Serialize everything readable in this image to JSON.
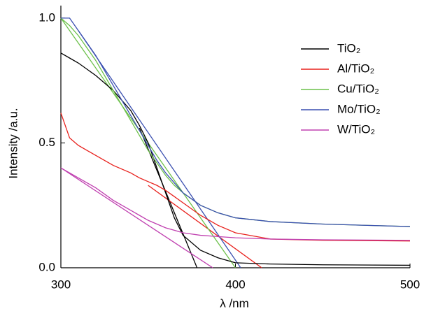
{
  "chart_data": {
    "type": "line",
    "x_label": "λ /nm",
    "y_label": "Intensity /a.u.",
    "x": [
      300,
      305,
      310,
      320,
      330,
      340,
      345,
      350,
      355,
      360,
      365,
      370,
      380,
      390,
      400,
      420,
      450,
      500
    ],
    "series": [
      {
        "name": "TiO₂",
        "color": "#000000",
        "values": [
          0.86,
          0.84,
          0.82,
          0.77,
          0.71,
          0.63,
          0.57,
          0.5,
          0.4,
          0.3,
          0.2,
          0.13,
          0.07,
          0.04,
          0.02,
          0.015,
          0.012,
          0.01
        ]
      },
      {
        "name": "Al/TiO₂",
        "color": "#e8201c",
        "values": [
          0.62,
          0.52,
          0.49,
          0.45,
          0.41,
          0.38,
          0.36,
          0.345,
          0.33,
          0.31,
          0.285,
          0.26,
          0.21,
          0.17,
          0.14,
          0.115,
          0.11,
          0.107
        ]
      },
      {
        "name": "Cu/TiO₂",
        "color": "#6cc04a",
        "values": [
          1.0,
          0.97,
          0.93,
          0.83,
          0.71,
          0.59,
          0.53,
          0.47,
          0.42,
          0.37,
          0.33,
          0.3,
          0.25,
          0.22,
          0.2,
          0.185,
          0.175,
          0.165
        ]
      },
      {
        "name": "Mo/TiO₂",
        "color": "#3a4fb0",
        "values": [
          1.0,
          1.0,
          0.95,
          0.85,
          0.73,
          0.61,
          0.55,
          0.49,
          0.43,
          0.38,
          0.34,
          0.3,
          0.25,
          0.22,
          0.2,
          0.185,
          0.175,
          0.165
        ]
      },
      {
        "name": "W/TiO₂",
        "color": "#c040b0",
        "values": [
          0.4,
          0.38,
          0.36,
          0.32,
          0.27,
          0.23,
          0.21,
          0.19,
          0.175,
          0.16,
          0.15,
          0.14,
          0.13,
          0.125,
          0.12,
          0.115,
          0.112,
          0.11
        ]
      }
    ],
    "tangent_lines": [
      {
        "color": "#000000",
        "x": [
          345,
          378
        ],
        "values": [
          0.56,
          0
        ]
      },
      {
        "color": "#e8201c",
        "x": [
          350,
          415
        ],
        "values": [
          0.33,
          0
        ]
      },
      {
        "color": "#6cc04a",
        "x": [
          300,
          400
        ],
        "values": [
          1.0,
          0
        ]
      },
      {
        "color": "#3a4fb0",
        "x": [
          310,
          403
        ],
        "values": [
          0.95,
          0
        ]
      },
      {
        "color": "#c040b0",
        "x": [
          300,
          387
        ],
        "values": [
          0.4,
          0
        ]
      }
    ],
    "xlim": [
      300,
      500
    ],
    "xticks": [
      300,
      400,
      500
    ],
    "ylim": [
      0,
      1.05
    ],
    "yticks": [
      {
        "value": 0,
        "label": "0.0"
      },
      0.5,
      {
        "value": 1,
        "label": "1.0"
      }
    ],
    "legend": "upper-right"
  }
}
